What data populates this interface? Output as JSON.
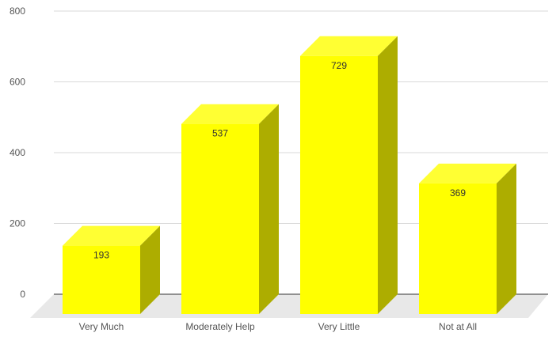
{
  "chart_data": {
    "type": "bar",
    "categories": [
      "Very Much",
      "Moderately Help",
      "Very Little",
      "Not at All"
    ],
    "values": [
      193,
      537,
      729,
      369
    ],
    "ylim": [
      0,
      800
    ],
    "yticks": [
      0,
      200,
      400,
      600,
      800
    ],
    "grid": true,
    "style": "3d",
    "colors": {
      "bar_front": "#ffff00",
      "bar_top": "#ffff33",
      "bar_side": "#adad00",
      "floor": "#e8e8e8",
      "grid": "#d9d9d9",
      "baseline": "#333333"
    }
  }
}
